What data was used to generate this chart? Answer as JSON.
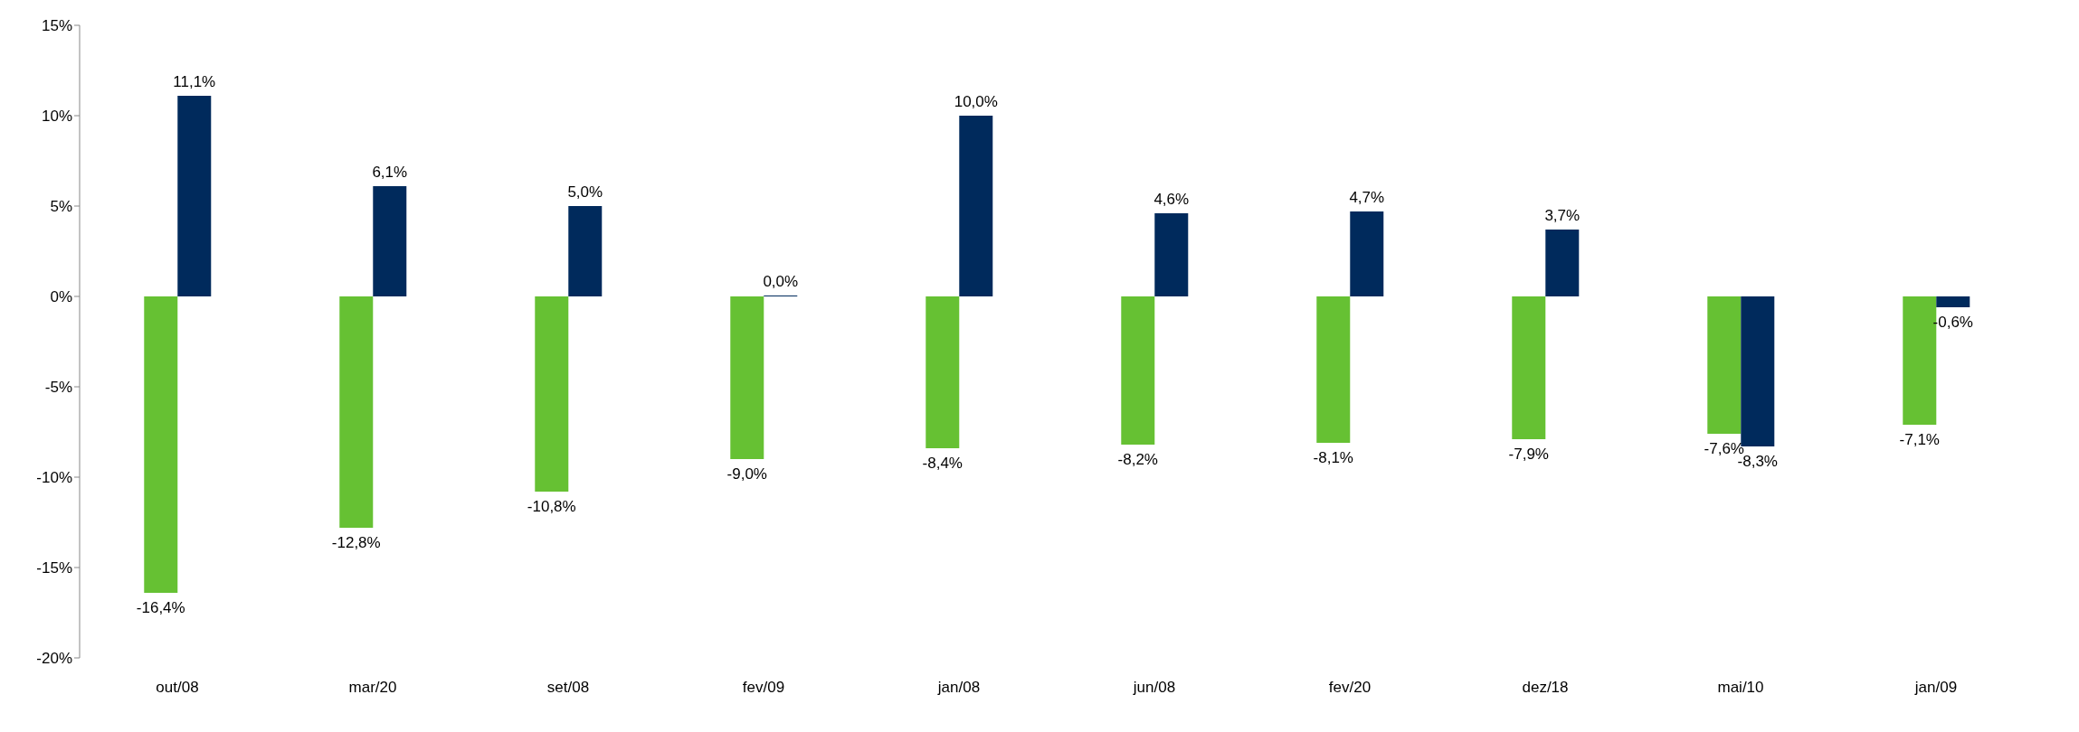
{
  "chart_data": {
    "type": "bar",
    "categories": [
      "out/08",
      "mar/20",
      "set/08",
      "fev/09",
      "jan/08",
      "jun/08",
      "fev/20",
      "dez/18",
      "mai/10",
      "jan/09"
    ],
    "series": [
      {
        "color": "#66c133",
        "values": [
          -16.4,
          -12.8,
          -10.8,
          -9.0,
          -8.4,
          -8.2,
          -8.1,
          -7.9,
          -7.6,
          -7.1
        ],
        "value_labels": [
          "-16,4%",
          "-12,8%",
          "-10,8%",
          "-9,0%",
          "-8,4%",
          "-8,2%",
          "-8,1%",
          "-7,9%",
          "-7,6%",
          "-7,1%"
        ]
      },
      {
        "color": "#002a5c",
        "values": [
          11.1,
          6.1,
          5.0,
          0.0,
          10.0,
          4.6,
          4.7,
          3.7,
          -8.3,
          -0.6
        ],
        "value_labels": [
          "11,1%",
          "6,1%",
          "5,0%",
          "0,0%",
          "10,0%",
          "4,6%",
          "4,7%",
          "3,7%",
          "-8,3%",
          "-0,6%"
        ]
      }
    ],
    "ylim": [
      -20,
      15
    ],
    "yticks": [
      {
        "value": -20,
        "label": "-20%"
      },
      {
        "value": -15,
        "label": "-15%"
      },
      {
        "value": -10,
        "label": "-10%"
      },
      {
        "value": -5,
        "label": "-5%"
      },
      {
        "value": 0,
        "label": "0%"
      },
      {
        "value": 5,
        "label": "5%"
      },
      {
        "value": 10,
        "label": "10%"
      },
      {
        "value": 15,
        "label": "15%"
      }
    ],
    "grid": false,
    "legend": false
  }
}
